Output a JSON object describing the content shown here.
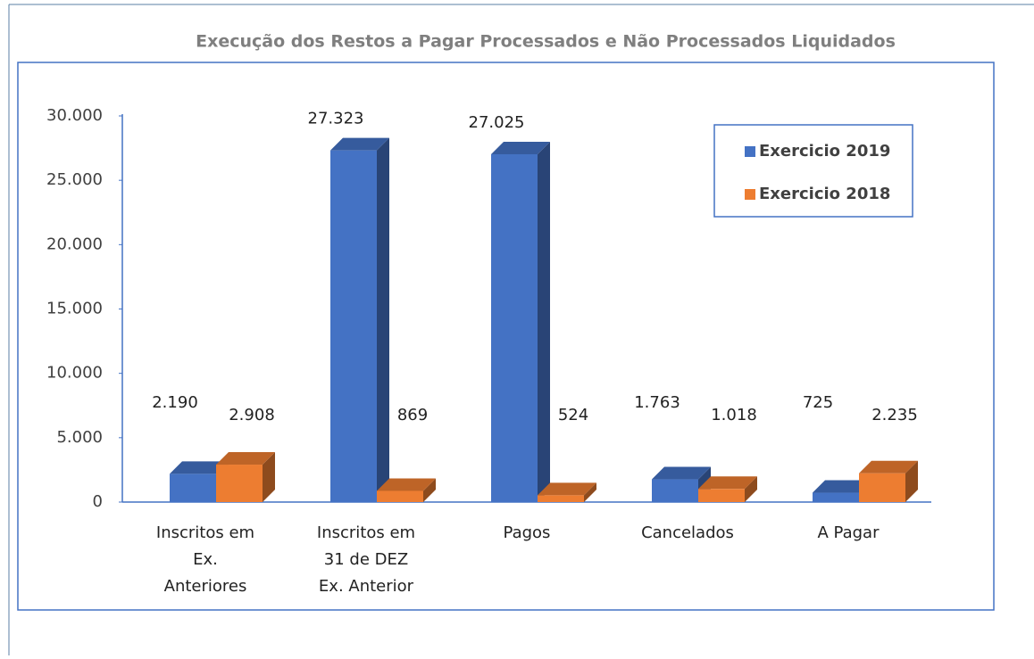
{
  "chart_data": {
    "type": "bar3d",
    "title": "Execução dos Restos a Pagar Processados e Não Processados Liquidados",
    "categories": [
      "Inscritos em Ex. Anteriores",
      "Inscritos em 31 de DEZ Ex. Anterior",
      "Pagos",
      "Cancelados",
      "A Pagar"
    ],
    "series": [
      {
        "name": "Exercicio 2019",
        "color": "#4472c4",
        "values": [
          2190,
          27323,
          27025,
          1763,
          725
        ],
        "value_labels": [
          "2.190",
          "27.323",
          "27.025",
          "1.763",
          "725"
        ]
      },
      {
        "name": "Exercicio 2018",
        "color": "#ed7d31",
        "values": [
          2908,
          869,
          524,
          1018,
          2235
        ],
        "value_labels": [
          "2.908",
          "869",
          "524",
          "1.018",
          "2.235"
        ]
      }
    ],
    "ylim": [
      0,
      30000
    ],
    "yticks": [
      0,
      {
        "value": 5000,
        "label": "5.000"
      },
      {
        "value": 10000,
        "label": "10.000"
      },
      {
        "value": 15000,
        "label": "15.000"
      },
      {
        "value": 20000,
        "label": "20.000"
      },
      {
        "value": 25000,
        "label": "25.000"
      },
      {
        "value": 30000,
        "label": "30.000"
      }
    ],
    "legend": "top-right"
  }
}
